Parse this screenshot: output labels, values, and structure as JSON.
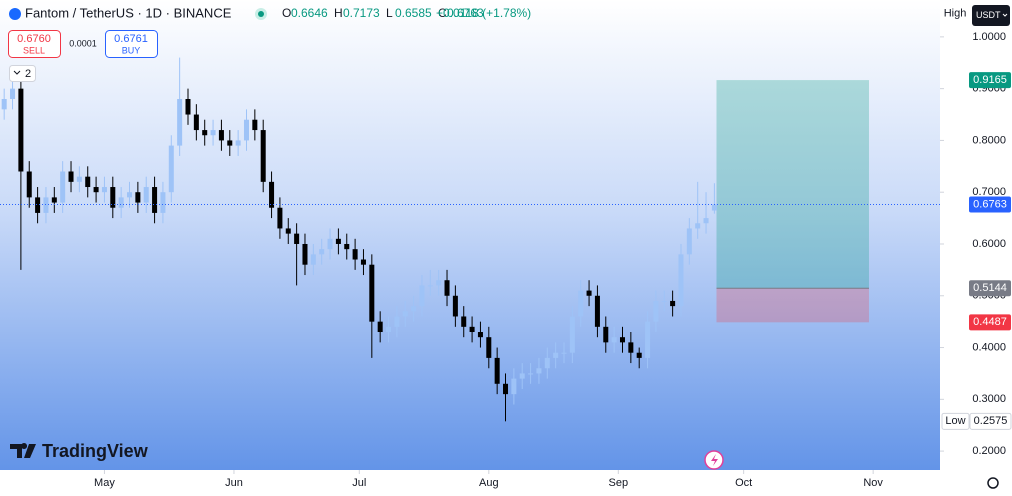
{
  "chart_data": {
    "type": "candlestick",
    "title": "Fantom / TetherUS · 1D · BINANCE",
    "ohlc_legend": [
      {
        "label": "O",
        "value": 0.6646
      },
      {
        "label": "H",
        "value": 0.7173
      },
      {
        "label": "L",
        "value": 0.6585
      },
      {
        "label": "C",
        "value": 0.6763
      }
    ],
    "change": "+0.0118 (+1.78%)",
    "trade_panel": {
      "sell_price": "0.6760",
      "sell_label": "SELL",
      "spread": "0.0001",
      "buy_price": "0.6761",
      "buy_label": "BUY"
    },
    "indicator_count": "2",
    "high_chip": "High",
    "currency": "USDT",
    "logo": "TradingView",
    "up_color": "#9ec3f7",
    "down_color": "#000000",
    "grid": false,
    "xlim": [
      -25,
      200
    ],
    "xticks": [
      {
        "value": 0,
        "label": "May"
      },
      {
        "value": 31,
        "label": "Jun"
      },
      {
        "value": 61,
        "label": "Jul"
      },
      {
        "value": 92,
        "label": "Aug"
      },
      {
        "value": 123,
        "label": "Sep"
      },
      {
        "value": 153,
        "label": "Oct"
      },
      {
        "value": 184,
        "label": "Nov"
      }
    ],
    "ylim": [
      0.1635,
      1.0712
    ],
    "yticks": [
      {
        "value": 1.0,
        "label": "1.0000"
      },
      {
        "value": 0.9,
        "label": "0.9000"
      },
      {
        "value": 0.8,
        "label": "0.8000"
      },
      {
        "value": 0.7,
        "label": "0.7000"
      },
      {
        "value": 0.6,
        "label": "0.6000"
      },
      {
        "value": 0.5,
        "label": "0.5000"
      },
      {
        "value": 0.4,
        "label": "0.4000"
      },
      {
        "value": 0.3,
        "label": "0.3000"
      },
      {
        "value": 0.2,
        "label": "0.2000"
      }
    ],
    "x": [
      -24,
      -22,
      -20,
      -18,
      -16,
      -14,
      -12,
      -10,
      -8,
      -6,
      -4,
      -2,
      0,
      2,
      4,
      6,
      8,
      10,
      12,
      14,
      16,
      18,
      20,
      22,
      24,
      26,
      28,
      30,
      32,
      34,
      36,
      38,
      40,
      42,
      44,
      46,
      48,
      50,
      52,
      54,
      56,
      58,
      60,
      62,
      64,
      66,
      68,
      70,
      72,
      74,
      76,
      78,
      80,
      82,
      84,
      86,
      88,
      90,
      92,
      94,
      96,
      98,
      100,
      102,
      104,
      106,
      108,
      110,
      112,
      114,
      116,
      118,
      120,
      122,
      124,
      126,
      128,
      130,
      132,
      134,
      136,
      138,
      140,
      142,
      144,
      146
    ],
    "open": [
      0.86,
      0.88,
      0.9,
      0.74,
      0.69,
      0.66,
      0.69,
      0.68,
      0.74,
      0.72,
      0.73,
      0.71,
      0.7,
      0.71,
      0.67,
      0.69,
      0.7,
      0.68,
      0.71,
      0.66,
      0.7,
      0.79,
      0.88,
      0.85,
      0.82,
      0.81,
      0.82,
      0.8,
      0.79,
      0.8,
      0.84,
      0.82,
      0.72,
      0.67,
      0.63,
      0.62,
      0.6,
      0.56,
      0.58,
      0.59,
      0.61,
      0.6,
      0.59,
      0.57,
      0.56,
      0.45,
      0.43,
      0.44,
      0.46,
      0.47,
      0.48,
      0.52,
      0.52,
      0.53,
      0.5,
      0.46,
      0.44,
      0.43,
      0.42,
      0.38,
      0.33,
      0.31,
      0.34,
      0.35,
      0.35,
      0.36,
      0.38,
      0.39,
      0.39,
      0.46,
      0.51,
      0.5,
      0.44,
      0.41,
      0.42,
      0.41,
      0.39,
      0.38,
      0.45,
      0.49,
      0.49,
      0.48,
      0.58,
      0.63,
      0.64,
      0.6646
    ],
    "high": [
      0.9,
      0.92,
      0.92,
      0.76,
      0.71,
      0.71,
      0.71,
      0.76,
      0.76,
      0.75,
      0.75,
      0.73,
      0.73,
      0.73,
      0.71,
      0.72,
      0.72,
      0.73,
      0.73,
      0.72,
      0.81,
      0.96,
      0.9,
      0.87,
      0.84,
      0.84,
      0.84,
      0.82,
      0.82,
      0.86,
      0.86,
      0.84,
      0.74,
      0.69,
      0.65,
      0.64,
      0.62,
      0.6,
      0.61,
      0.63,
      0.63,
      0.62,
      0.61,
      0.59,
      0.58,
      0.47,
      0.46,
      0.48,
      0.49,
      0.5,
      0.54,
      0.55,
      0.55,
      0.55,
      0.52,
      0.48,
      0.46,
      0.45,
      0.44,
      0.4,
      0.35,
      0.36,
      0.37,
      0.37,
      0.38,
      0.4,
      0.41,
      0.41,
      0.48,
      0.53,
      0.53,
      0.52,
      0.46,
      0.44,
      0.44,
      0.43,
      0.4,
      0.47,
      0.51,
      0.51,
      0.51,
      0.6,
      0.65,
      0.72,
      0.7,
      0.7173
    ],
    "low": [
      0.84,
      0.86,
      0.55,
      0.67,
      0.64,
      0.64,
      0.66,
      0.66,
      0.7,
      0.7,
      0.69,
      0.68,
      0.68,
      0.65,
      0.65,
      0.67,
      0.66,
      0.66,
      0.64,
      0.64,
      0.68,
      0.77,
      0.83,
      0.8,
      0.79,
      0.79,
      0.78,
      0.77,
      0.77,
      0.78,
      0.8,
      0.7,
      0.65,
      0.61,
      0.6,
      0.52,
      0.54,
      0.54,
      0.56,
      0.57,
      0.58,
      0.57,
      0.55,
      0.54,
      0.38,
      0.41,
      0.41,
      0.42,
      0.44,
      0.45,
      0.46,
      0.5,
      0.5,
      0.48,
      0.44,
      0.42,
      0.41,
      0.4,
      0.36,
      0.31,
      0.2575,
      0.29,
      0.32,
      0.33,
      0.33,
      0.34,
      0.36,
      0.37,
      0.37,
      0.44,
      0.48,
      0.42,
      0.39,
      0.39,
      0.39,
      0.37,
      0.36,
      0.36,
      0.43,
      0.47,
      0.46,
      0.46,
      0.56,
      0.61,
      0.62,
      0.6585
    ],
    "close": [
      0.88,
      0.9,
      0.74,
      0.69,
      0.66,
      0.69,
      0.68,
      0.74,
      0.72,
      0.73,
      0.71,
      0.7,
      0.71,
      0.67,
      0.69,
      0.7,
      0.68,
      0.71,
      0.66,
      0.7,
      0.79,
      0.88,
      0.85,
      0.82,
      0.81,
      0.82,
      0.8,
      0.79,
      0.8,
      0.84,
      0.82,
      0.72,
      0.67,
      0.63,
      0.62,
      0.6,
      0.56,
      0.58,
      0.59,
      0.61,
      0.6,
      0.59,
      0.57,
      0.56,
      0.45,
      0.43,
      0.44,
      0.46,
      0.47,
      0.48,
      0.52,
      0.52,
      0.53,
      0.5,
      0.46,
      0.44,
      0.43,
      0.42,
      0.38,
      0.33,
      0.31,
      0.34,
      0.35,
      0.35,
      0.36,
      0.38,
      0.39,
      0.39,
      0.46,
      0.51,
      0.5,
      0.44,
      0.41,
      0.42,
      0.41,
      0.39,
      0.38,
      0.45,
      0.49,
      0.49,
      0.48,
      0.58,
      0.63,
      0.64,
      0.65,
      0.6763
    ],
    "last_price": {
      "value": 0.6763,
      "color": "#2962ff"
    },
    "low_label": {
      "label": "Low",
      "value": 0.2575
    },
    "position": {
      "target": 0.9165,
      "entry": 0.5144,
      "stop": 0.4487,
      "x_start": 146.5,
      "x_end": 183,
      "target_color": "#089981",
      "entry_color": "#787b86",
      "stop_color": "#f23645"
    }
  }
}
